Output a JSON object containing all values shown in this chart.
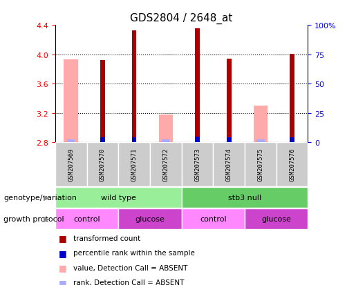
{
  "title": "GDS2804 / 2648_at",
  "samples": [
    "GSM207569",
    "GSM207570",
    "GSM207571",
    "GSM207572",
    "GSM207573",
    "GSM207574",
    "GSM207575",
    "GSM207576"
  ],
  "ylim": [
    2.8,
    4.4
  ],
  "yticks": [
    2.8,
    3.2,
    3.6,
    4.0,
    4.4
  ],
  "y2lim": [
    0,
    100
  ],
  "y2ticks": [
    0,
    25,
    50,
    75,
    100
  ],
  "y2labels": [
    "0",
    "25",
    "50",
    "75",
    "100%"
  ],
  "bar_bottom": 2.8,
  "red_values": [
    null,
    3.92,
    4.325,
    null,
    4.36,
    3.94,
    null,
    4.01
  ],
  "pink_values": [
    3.93,
    null,
    null,
    3.18,
    null,
    null,
    3.3,
    null
  ],
  "blue_values": [
    null,
    0.07,
    0.07,
    null,
    0.08,
    0.07,
    null,
    0.07
  ],
  "lightblue_values": [
    0.04,
    null,
    null,
    0.04,
    null,
    null,
    0.04,
    null
  ],
  "red_color": "#aa0000",
  "pink_color": "#ffaaaa",
  "blue_color": "#0000cc",
  "lightblue_color": "#aaaaff",
  "genotype_groups": [
    {
      "label": "wild type",
      "start": 0,
      "end": 4,
      "color": "#99ee99"
    },
    {
      "label": "stb3 null",
      "start": 4,
      "end": 8,
      "color": "#66cc66"
    }
  ],
  "protocol_groups": [
    {
      "label": "control",
      "start": 0,
      "end": 2,
      "color": "#ff88ff"
    },
    {
      "label": "glucose",
      "start": 2,
      "end": 4,
      "color": "#cc44cc"
    },
    {
      "label": "control",
      "start": 4,
      "end": 6,
      "color": "#ff88ff"
    },
    {
      "label": "glucose",
      "start": 6,
      "end": 8,
      "color": "#cc44cc"
    }
  ],
  "legend_items": [
    {
      "label": "transformed count",
      "color": "#aa0000"
    },
    {
      "label": "percentile rank within the sample",
      "color": "#0000cc"
    },
    {
      "label": "value, Detection Call = ABSENT",
      "color": "#ffaaaa"
    },
    {
      "label": "rank, Detection Call = ABSENT",
      "color": "#aaaaff"
    }
  ],
  "xlabel_genotype": "genotype/variation",
  "xlabel_protocol": "growth protocol",
  "bar_width": 0.45,
  "figsize": [
    5.15,
    4.14
  ],
  "dpi": 100,
  "bg_color": "#ffffff",
  "plot_bg": "#ffffff",
  "grid_color": "#000000",
  "title_fontsize": 11,
  "tick_fontsize": 8,
  "label_fontsize": 8,
  "xticklabel_gray": "#cccccc"
}
